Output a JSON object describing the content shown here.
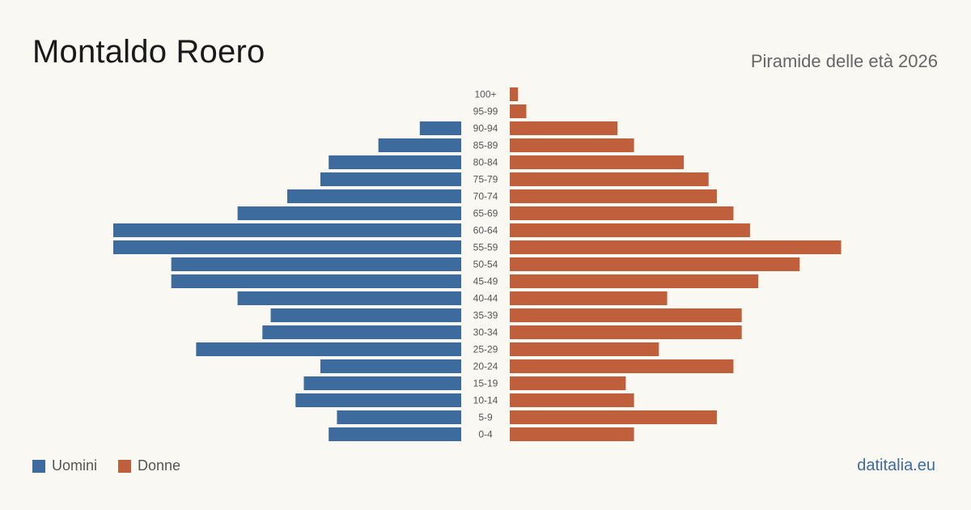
{
  "header": {
    "title": "Montaldo Roero",
    "subtitle": "Piramide delle età 2026"
  },
  "colors": {
    "men": "#3d6b9e",
    "women": "#bf5f3c",
    "background": "#faf8f3",
    "label": "#555555"
  },
  "legend": {
    "men_label": "Uomini",
    "women_label": "Donne"
  },
  "brand": "datitalia.eu",
  "chart_data": {
    "type": "bar",
    "orientation": "horizontal-pyramid",
    "title": "Montaldo Roero",
    "subtitle": "Piramide delle età 2026",
    "categories": [
      "100+",
      "95-99",
      "90-94",
      "85-89",
      "80-84",
      "75-79",
      "70-74",
      "65-69",
      "60-64",
      "55-59",
      "50-54",
      "45-49",
      "40-44",
      "35-39",
      "30-34",
      "25-29",
      "20-24",
      "15-19",
      "10-14",
      "5-9",
      "0-4"
    ],
    "series": [
      {
        "name": "Uomini",
        "side": "left",
        "values": [
          0,
          0,
          5,
          10,
          16,
          17,
          21,
          27,
          42,
          42,
          35,
          35,
          27,
          23,
          24,
          32,
          17,
          19,
          20,
          15,
          16
        ]
      },
      {
        "name": "Donne",
        "side": "right",
        "values": [
          1,
          2,
          13,
          15,
          21,
          24,
          25,
          27,
          29,
          40,
          35,
          30,
          19,
          28,
          28,
          18,
          27,
          14,
          15,
          25,
          15
        ]
      }
    ],
    "xlim": [
      0,
      42
    ],
    "grid": false,
    "legend_position": "bottom-left"
  }
}
